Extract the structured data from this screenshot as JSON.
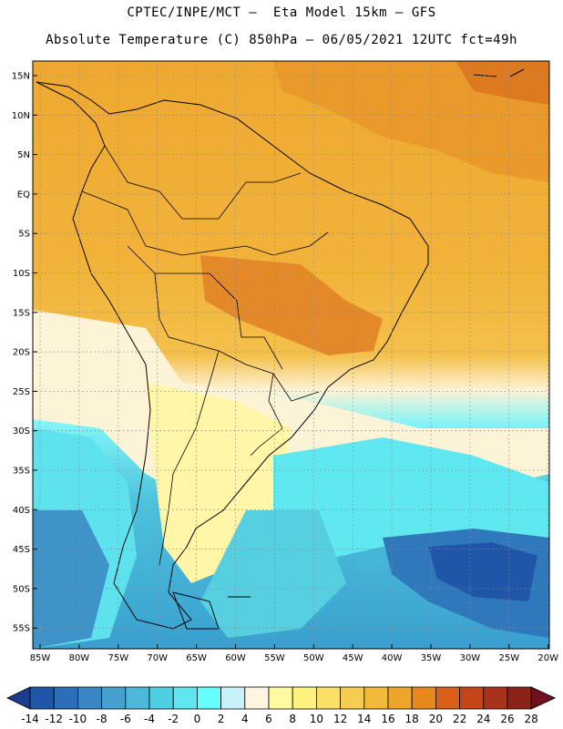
{
  "header": {
    "line1": "CPTEC/INPE/MCT –  Eta Model 15km – GFS",
    "line2": "Absolute Temperature (C) 850hPa – 06/05/2021 12UTC fct=49h"
  },
  "map": {
    "lat_labels": [
      "15N",
      "10N",
      "5N",
      "EQ",
      "5S",
      "10S",
      "15S",
      "20S",
      "25S",
      "30S",
      "35S",
      "40S",
      "45S",
      "50S",
      "55S"
    ],
    "lon_labels": [
      "85W",
      "80W",
      "75W",
      "70W",
      "65W",
      "60W",
      "55W",
      "50W",
      "45W",
      "40W",
      "35W",
      "30W",
      "25W",
      "20W"
    ]
  },
  "colorbar": {
    "labels": [
      "-14",
      "-12",
      "-10",
      "-8",
      "-6",
      "-4",
      "-2",
      "0",
      "2",
      "4",
      "6",
      "8",
      "10",
      "12",
      "14",
      "16",
      "18",
      "20",
      "22",
      "24",
      "26",
      "28"
    ],
    "colors": [
      "#1a3d8f",
      "#1f56a8",
      "#2a6fb8",
      "#3a86c4",
      "#45a0cf",
      "#4db8d9",
      "#50cfe3",
      "#5fe6ef",
      "#66ffff",
      "#c8f2fb",
      "#fff5e0",
      "#fffaa0",
      "#fff280",
      "#fde067",
      "#f6cc52",
      "#f2b93b",
      "#eda52b",
      "#e8891e",
      "#d9601a",
      "#c44618",
      "#a8321a",
      "#8a2418",
      "#70101f"
    ]
  }
}
